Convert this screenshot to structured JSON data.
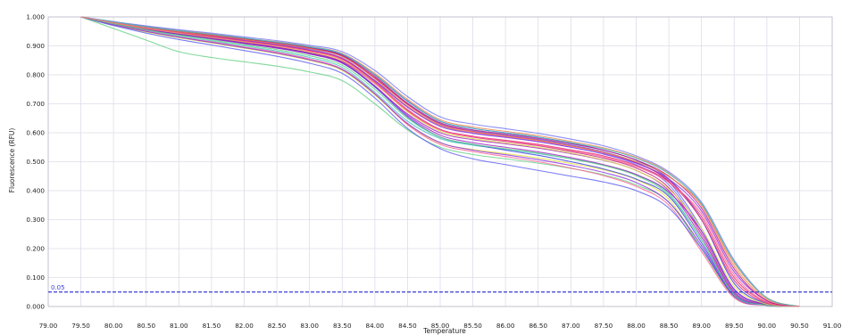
{
  "chart_data": {
    "type": "line",
    "xlabel": "Temperature",
    "ylabel": "Fluorescence (RFU)",
    "xlim": [
      79.0,
      91.0
    ],
    "ylim": [
      0.0,
      1.0
    ],
    "x_ticks": [
      "79.00",
      "79.50",
      "80.00",
      "80.50",
      "81.00",
      "81.50",
      "82.00",
      "82.50",
      "83.00",
      "83.50",
      "84.00",
      "84.50",
      "85.00",
      "85.50",
      "86.00",
      "86.50",
      "87.00",
      "87.50",
      "88.00",
      "88.50",
      "89.00",
      "89.50",
      "90.00",
      "90.50",
      "91.00"
    ],
    "y_ticks": [
      "0.000",
      "0.100",
      "0.200",
      "0.300",
      "0.400",
      "0.500",
      "0.600",
      "0.700",
      "0.800",
      "0.900",
      "1.000"
    ],
    "grid": true,
    "threshold": {
      "value": 0.05,
      "label": "0.05",
      "color": "#3b3bd6"
    },
    "palette": [
      "#3a3ae0",
      "#5a5af0",
      "#7070f5",
      "#e0206a",
      "#c0187a",
      "#a020c0",
      "#8a2be2",
      "#f08040",
      "#40c0c0",
      "#e0e040",
      "#60d080",
      "#ff6090"
    ],
    "x": [
      79.5,
      80.0,
      80.5,
      81.0,
      81.5,
      82.0,
      82.5,
      83.0,
      83.5,
      84.0,
      84.5,
      85.0,
      85.5,
      86.0,
      86.5,
      87.0,
      87.5,
      88.0,
      88.5,
      89.0,
      89.5,
      90.0,
      90.5
    ],
    "series": [
      {
        "values": [
          1.0,
          0.982,
          0.966,
          0.952,
          0.94,
          0.926,
          0.912,
          0.895,
          0.87,
          0.8,
          0.71,
          0.64,
          0.615,
          0.6,
          0.585,
          0.565,
          0.54,
          0.505,
          0.44,
          0.3,
          0.08,
          0.01,
          0.0
        ]
      },
      {
        "values": [
          1.0,
          0.98,
          0.963,
          0.949,
          0.936,
          0.922,
          0.908,
          0.89,
          0.864,
          0.79,
          0.7,
          0.632,
          0.608,
          0.593,
          0.578,
          0.558,
          0.534,
          0.498,
          0.43,
          0.27,
          0.06,
          0.008,
          0.0
        ]
      },
      {
        "values": [
          1.0,
          0.979,
          0.961,
          0.946,
          0.932,
          0.918,
          0.903,
          0.884,
          0.856,
          0.78,
          0.69,
          0.625,
          0.6,
          0.586,
          0.57,
          0.55,
          0.526,
          0.49,
          0.42,
          0.26,
          0.055,
          0.008,
          0.0
        ]
      },
      {
        "values": [
          1.0,
          0.982,
          0.964,
          0.95,
          0.937,
          0.923,
          0.909,
          0.892,
          0.866,
          0.79,
          0.698,
          0.63,
          0.605,
          0.59,
          0.575,
          0.555,
          0.532,
          0.496,
          0.435,
          0.31,
          0.1,
          0.015,
          0.0
        ]
      },
      {
        "values": [
          1.0,
          0.977,
          0.958,
          0.942,
          0.927,
          0.912,
          0.896,
          0.876,
          0.846,
          0.77,
          0.675,
          0.61,
          0.585,
          0.57,
          0.555,
          0.535,
          0.512,
          0.478,
          0.41,
          0.25,
          0.05,
          0.006,
          0.0
        ]
      },
      {
        "values": [
          1.0,
          0.976,
          0.956,
          0.939,
          0.924,
          0.908,
          0.892,
          0.872,
          0.84,
          0.76,
          0.665,
          0.6,
          0.576,
          0.562,
          0.547,
          0.528,
          0.505,
          0.47,
          0.4,
          0.24,
          0.045,
          0.006,
          0.0
        ]
      },
      {
        "values": [
          1.0,
          0.981,
          0.963,
          0.948,
          0.934,
          0.92,
          0.905,
          0.887,
          0.858,
          0.78,
          0.688,
          0.622,
          0.598,
          0.584,
          0.569,
          0.55,
          0.528,
          0.495,
          0.44,
          0.33,
          0.12,
          0.02,
          0.0
        ]
      },
      {
        "values": [
          1.0,
          0.983,
          0.967,
          0.953,
          0.941,
          0.927,
          0.914,
          0.898,
          0.874,
          0.805,
          0.715,
          0.645,
          0.62,
          0.605,
          0.59,
          0.57,
          0.548,
          0.515,
          0.46,
          0.35,
          0.14,
          0.025,
          0.0
        ]
      },
      {
        "values": [
          1.0,
          0.975,
          0.953,
          0.934,
          0.917,
          0.9,
          0.882,
          0.86,
          0.826,
          0.74,
          0.64,
          0.58,
          0.557,
          0.543,
          0.528,
          0.51,
          0.488,
          0.455,
          0.39,
          0.23,
          0.04,
          0.005,
          0.0
        ]
      },
      {
        "values": [
          1.0,
          0.972,
          0.948,
          0.928,
          0.91,
          0.892,
          0.873,
          0.85,
          0.815,
          0.73,
          0.63,
          0.565,
          0.542,
          0.528,
          0.513,
          0.494,
          0.472,
          0.438,
          0.37,
          0.2,
          0.035,
          0.004,
          0.0
        ]
      },
      {
        "values": [
          1.0,
          0.96,
          0.92,
          0.88,
          0.86,
          0.845,
          0.83,
          0.81,
          0.78,
          0.7,
          0.61,
          0.55,
          0.525,
          0.51,
          0.495,
          0.477,
          0.455,
          0.42,
          0.36,
          0.2,
          0.035,
          0.004,
          0.0
        ]
      },
      {
        "values": [
          1.0,
          0.974,
          0.951,
          0.931,
          0.914,
          0.896,
          0.878,
          0.855,
          0.82,
          0.735,
          0.628,
          0.56,
          0.535,
          0.518,
          0.5,
          0.478,
          0.452,
          0.415,
          0.35,
          0.19,
          0.03,
          0.004,
          0.0
        ]
      },
      {
        "values": [
          1.0,
          0.978,
          0.958,
          0.941,
          0.926,
          0.91,
          0.894,
          0.874,
          0.842,
          0.758,
          0.655,
          0.585,
          0.56,
          0.54,
          0.522,
          0.5,
          0.475,
          0.44,
          0.38,
          0.22,
          0.04,
          0.005,
          0.0
        ]
      },
      {
        "values": [
          1.0,
          0.97,
          0.944,
          0.922,
          0.903,
          0.884,
          0.864,
          0.84,
          0.805,
          0.72,
          0.615,
          0.545,
          0.51,
          0.49,
          0.47,
          0.45,
          0.43,
          0.4,
          0.34,
          0.2,
          0.04,
          0.005,
          0.0
        ]
      },
      {
        "values": [
          1.0,
          0.984,
          0.969,
          0.956,
          0.944,
          0.931,
          0.918,
          0.902,
          0.88,
          0.815,
          0.725,
          0.655,
          0.63,
          0.614,
          0.598,
          0.578,
          0.555,
          0.52,
          0.465,
          0.36,
          0.16,
          0.03,
          0.0
        ]
      },
      {
        "values": [
          1.0,
          0.98,
          0.962,
          0.946,
          0.932,
          0.917,
          0.902,
          0.884,
          0.855,
          0.776,
          0.68,
          0.612,
          0.588,
          0.574,
          0.56,
          0.541,
          0.52,
          0.487,
          0.43,
          0.3,
          0.09,
          0.012,
          0.0
        ]
      },
      {
        "values": [
          1.0,
          0.982,
          0.965,
          0.95,
          0.937,
          0.924,
          0.91,
          0.893,
          0.867,
          0.795,
          0.702,
          0.635,
          0.61,
          0.596,
          0.581,
          0.562,
          0.54,
          0.506,
          0.45,
          0.34,
          0.13,
          0.02,
          0.0
        ]
      },
      {
        "values": [
          1.0,
          0.977,
          0.957,
          0.94,
          0.925,
          0.909,
          0.893,
          0.873,
          0.843,
          0.762,
          0.66,
          0.592,
          0.566,
          0.55,
          0.534,
          0.514,
          0.49,
          0.456,
          0.395,
          0.26,
          0.06,
          0.007,
          0.0
        ]
      },
      {
        "values": [
          1.0,
          0.973,
          0.95,
          0.93,
          0.912,
          0.894,
          0.875,
          0.852,
          0.818,
          0.734,
          0.632,
          0.566,
          0.54,
          0.524,
          0.507,
          0.487,
          0.463,
          0.428,
          0.36,
          0.21,
          0.035,
          0.004,
          0.0
        ]
      },
      {
        "values": [
          1.0,
          0.981,
          0.964,
          0.949,
          0.936,
          0.922,
          0.908,
          0.891,
          0.863,
          0.786,
          0.692,
          0.626,
          0.602,
          0.588,
          0.573,
          0.554,
          0.532,
          0.5,
          0.448,
          0.35,
          0.15,
          0.03,
          0.0
        ]
      },
      {
        "values": [
          1.0,
          0.983,
          0.966,
          0.952,
          0.94,
          0.927,
          0.913,
          0.897,
          0.872,
          0.8,
          0.708,
          0.64,
          0.615,
          0.6,
          0.585,
          0.566,
          0.545,
          0.512,
          0.458,
          0.355,
          0.155,
          0.03,
          0.0
        ]
      },
      {
        "values": [
          1.0,
          0.979,
          0.96,
          0.944,
          0.929,
          0.914,
          0.899,
          0.879,
          0.85,
          0.77,
          0.672,
          0.605,
          0.58,
          0.565,
          0.55,
          0.53,
          0.506,
          0.47,
          0.405,
          0.27,
          0.07,
          0.008,
          0.0
        ]
      },
      {
        "values": [
          1.0,
          0.976,
          0.955,
          0.937,
          0.921,
          0.904,
          0.887,
          0.866,
          0.833,
          0.75,
          0.65,
          0.585,
          0.56,
          0.545,
          0.53,
          0.51,
          0.487,
          0.452,
          0.385,
          0.23,
          0.04,
          0.005,
          0.0
        ]
      },
      {
        "values": [
          1.0,
          0.98,
          0.961,
          0.945,
          0.93,
          0.915,
          0.9,
          0.881,
          0.852,
          0.772,
          0.676,
          0.61,
          0.586,
          0.572,
          0.557,
          0.538,
          0.516,
          0.483,
          0.428,
          0.32,
          0.11,
          0.015,
          0.0
        ]
      }
    ]
  }
}
